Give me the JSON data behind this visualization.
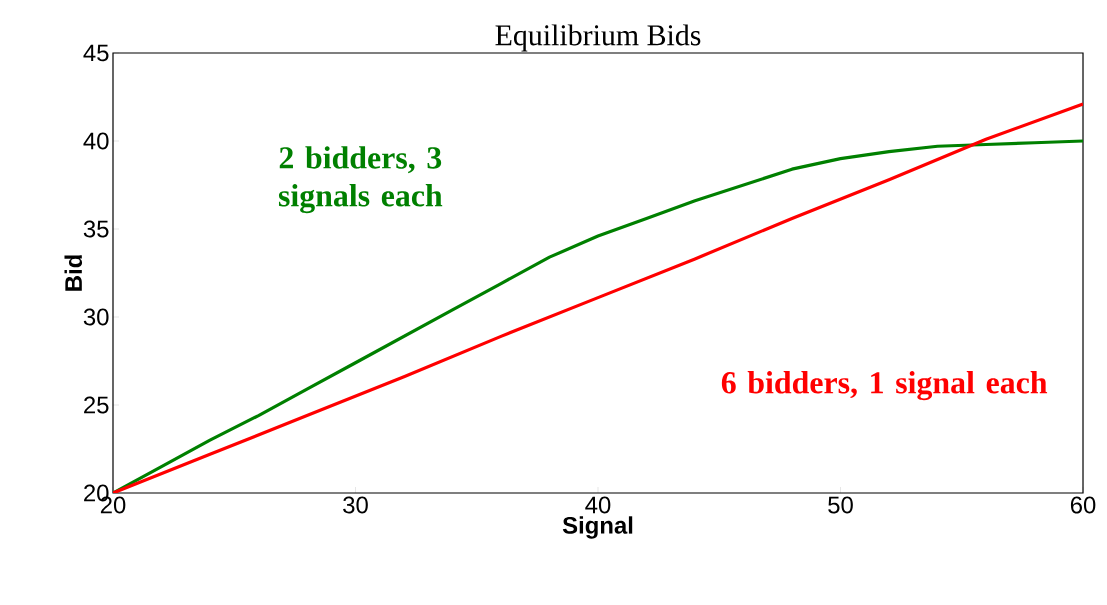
{
  "chart_data": {
    "type": "line",
    "title": "Equilibrium Bids",
    "xlabel": "Signal",
    "ylabel": "Bid",
    "xlim": [
      20,
      60
    ],
    "ylim": [
      20,
      45
    ],
    "xticks": [
      20,
      30,
      40,
      50,
      60
    ],
    "yticks": [
      20,
      25,
      30,
      35,
      40,
      45
    ],
    "grid": false,
    "legend": false,
    "marker": "none",
    "line_style": "solid",
    "series": [
      {
        "name": "2 bidders, 3 signals each",
        "color": "#008000",
        "x": [
          20,
          22,
          24,
          26,
          28,
          30,
          32,
          34,
          36,
          38,
          40,
          42,
          44,
          46,
          48,
          50,
          52,
          54,
          56,
          58,
          60
        ],
        "values": [
          20,
          21.5,
          23.0,
          24.4,
          25.9,
          27.4,
          28.9,
          30.4,
          31.9,
          33.4,
          34.6,
          35.6,
          36.6,
          37.5,
          38.4,
          39.0,
          39.4,
          39.7,
          39.8,
          39.9,
          40.0
        ]
      },
      {
        "name": "6 bidders, 1 signal each",
        "color": "#ff0000",
        "x": [
          20,
          24,
          28,
          32,
          36,
          40,
          44,
          48,
          52,
          56,
          60
        ],
        "values": [
          20,
          22.2,
          24.4,
          26.6,
          28.9,
          31.1,
          33.3,
          35.6,
          37.8,
          40.1,
          42.1
        ]
      }
    ]
  }
}
